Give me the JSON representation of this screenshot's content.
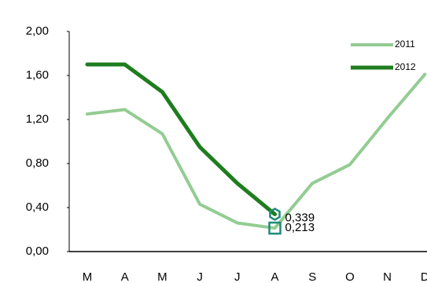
{
  "chart_data": {
    "type": "line",
    "categories": [
      "M",
      "A",
      "M",
      "J",
      "J",
      "A",
      "S",
      "O",
      "N",
      "D"
    ],
    "series": [
      {
        "name": "2011",
        "color": "#93cc93",
        "values": [
          1.25,
          1.29,
          1.07,
          0.43,
          0.26,
          0.213,
          0.62,
          0.79,
          1.21,
          1.61
        ],
        "value_labels": [
          null,
          null,
          null,
          null,
          null,
          "0,213",
          null,
          null,
          null,
          null
        ],
        "marker_color": "#1f8a7a"
      },
      {
        "name": "2012",
        "color": "#1e7d1e",
        "values": [
          1.7,
          1.7,
          1.45,
          0.95,
          0.62,
          0.339,
          null,
          null,
          null,
          null
        ],
        "value_labels": [
          null,
          null,
          null,
          null,
          null,
          "0,339",
          null,
          null,
          null,
          null
        ],
        "marker_color": "#1f8a7a"
      }
    ],
    "ylim": [
      0,
      2
    ],
    "yticks": [
      {
        "value": 0,
        "label": "0,00"
      },
      {
        "value": 0.4,
        "label": "0,40"
      },
      {
        "value": 0.8,
        "label": "0,80"
      },
      {
        "value": 1.2,
        "label": "1,20"
      },
      {
        "value": 1.6,
        "label": "1,60"
      },
      {
        "value": 2,
        "label": "2,00"
      }
    ],
    "legend": "top-right"
  }
}
